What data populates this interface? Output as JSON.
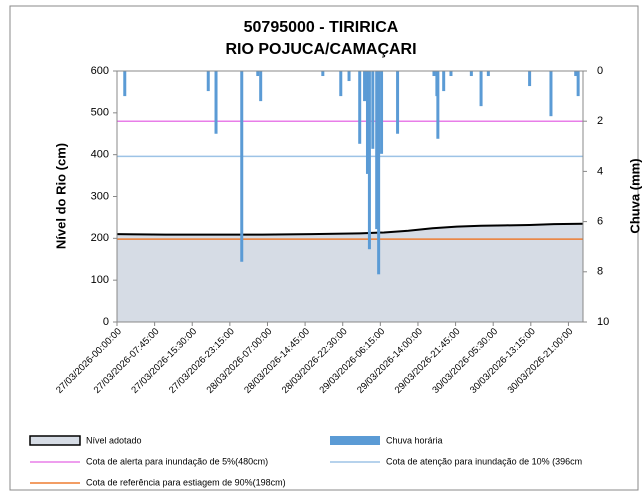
{
  "chart_data": {
    "type": "area_bar",
    "title": "50795000 - TIRIRICA",
    "subtitle": "RIO POJUCA/CAMAÇARI",
    "ylabel": "Nível do Rio (cm)",
    "y2label": "Chuva (mm)",
    "xlim": [
      0,
      96
    ],
    "ylim": [
      0,
      600
    ],
    "yticks": [
      0,
      100,
      200,
      300,
      400,
      500,
      600
    ],
    "y2lim": [
      10,
      0
    ],
    "y2ticks": [
      0,
      2,
      4,
      6,
      8,
      10
    ],
    "xticks": [
      {
        "value": 0,
        "label": "27/03/2026-00:00:00"
      },
      {
        "value": 7.75,
        "label": "27/03/2026-07:45:00"
      },
      {
        "value": 15.5,
        "label": "27/03/2026-15:30:00"
      },
      {
        "value": 23.25,
        "label": "27/03/2026-23:15:00"
      },
      {
        "value": 31,
        "label": "28/03/2026-07:00:00"
      },
      {
        "value": 38.75,
        "label": "28/03/2026-14:45:00"
      },
      {
        "value": 46.5,
        "label": "28/03/2026-22:30:00"
      },
      {
        "value": 54.25,
        "label": "29/03/2026-06:15:00"
      },
      {
        "value": 62,
        "label": "29/03/2026-14:00:00"
      },
      {
        "value": 69.75,
        "label": "29/03/2026-21:45:00"
      },
      {
        "value": 77.5,
        "label": "30/03/2026-05:30:00"
      },
      {
        "value": 85.25,
        "label": "30/03/2026-13:15:00"
      },
      {
        "value": 93,
        "label": "30/03/2026-21:00:00"
      }
    ],
    "series": [
      {
        "name": "Nível adotado",
        "color": "#d6dce5",
        "stroke": "#000000",
        "x": [
          0,
          10,
          20,
          30,
          40,
          50,
          55,
          60,
          65,
          70,
          75,
          80,
          85,
          90,
          96
        ],
        "values": [
          210,
          209,
          209,
          209,
          210,
          212,
          214,
          218,
          224,
          228,
          230,
          231,
          232,
          234,
          235
        ]
      },
      {
        "name": "Chuva horária",
        "color": "#5b9bd5",
        "axis": "y2",
        "x": [
          1.6,
          18.8,
          20.4,
          25.7,
          29,
          29.6,
          42.4,
          46.1,
          47.8,
          50,
          51,
          51.6,
          52,
          52.7,
          53.5,
          53.9,
          54.5,
          57.8,
          65.3,
          65.9,
          66.1,
          67.3,
          68.8,
          73,
          75,
          76.5,
          85,
          89.4,
          94.5,
          95
        ],
        "values": [
          1,
          0.8,
          2.5,
          7.6,
          0.2,
          1.2,
          0.2,
          1,
          0.4,
          2.9,
          1.2,
          4.1,
          7.1,
          3.1,
          6.3,
          8.1,
          3.3,
          2.5,
          0.2,
          1,
          2.7,
          0.8,
          0.2,
          0.2,
          1.4,
          0.2,
          0.6,
          1.8,
          0.2,
          1
        ]
      }
    ],
    "reference_lines": [
      {
        "name": "Cota de alerta para inundação de 5%(480cm)",
        "color": "#e87ee8",
        "value": 480
      },
      {
        "name": "Cota de atenção para inundação de 10% (396cm",
        "color": "#9dc3e6",
        "value": 396
      },
      {
        "name": "Cota de referência para estiagem de 90%(198cm)",
        "color": "#ed7d31",
        "value": 198
      }
    ]
  }
}
